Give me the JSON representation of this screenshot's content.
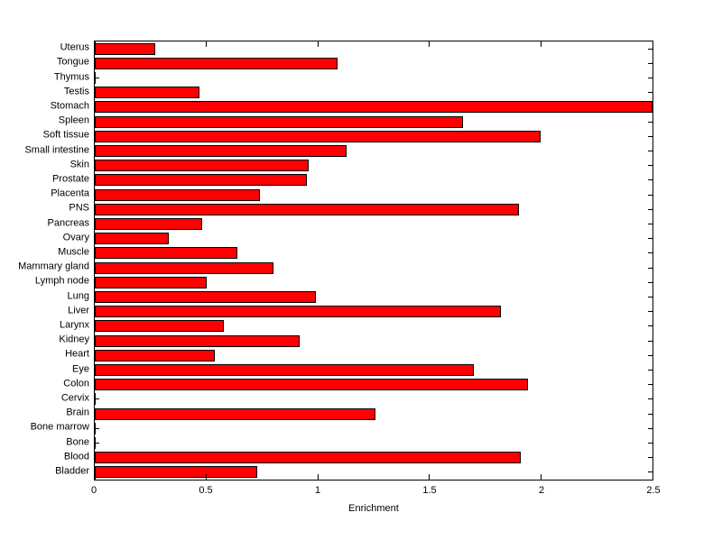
{
  "chart_data": {
    "type": "bar",
    "orientation": "horizontal",
    "title": "",
    "xlabel": "Enrichment",
    "ylabel": "",
    "xlim": [
      0,
      2.5
    ],
    "xticks": [
      0,
      0.5,
      1,
      1.5,
      2,
      2.5
    ],
    "xtick_labels": [
      "0",
      "0.5",
      "1",
      "1.5",
      "2",
      "2.5"
    ],
    "grid": false,
    "legend": null,
    "bar_color": "#ff0000",
    "bar_edge_color": "#000000",
    "background_color": "#ffffff",
    "categories": [
      "Uterus",
      "Tongue",
      "Thymus",
      "Testis",
      "Stomach",
      "Spleen",
      "Soft tissue",
      "Small intestine",
      "Skin",
      "Prostate",
      "Placenta",
      "PNS",
      "Pancreas",
      "Ovary",
      "Muscle",
      "Mammary gland",
      "Lymph node",
      "Lung",
      "Liver",
      "Larynx",
      "Kidney",
      "Heart",
      "Eye",
      "Colon",
      "Cervix",
      "Brain",
      "Bone marrow",
      "Bone",
      "Blood",
      "Bladder"
    ],
    "values": [
      0.27,
      1.09,
      0,
      0.47,
      2.5,
      1.65,
      2.0,
      1.13,
      0.96,
      0.95,
      0.74,
      1.9,
      0.48,
      0.33,
      0.64,
      0.8,
      0.5,
      0.99,
      1.82,
      0.58,
      0.92,
      0.54,
      1.7,
      1.94,
      0,
      1.26,
      0,
      0,
      1.91,
      0.73
    ]
  }
}
